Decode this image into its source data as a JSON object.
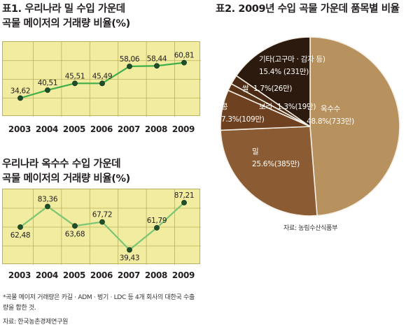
{
  "chart_data": [
    {
      "type": "line",
      "title_line1": "표1. 우리나라 밀 수입 가운데",
      "title_line2": "곡물 메이저의 거래량 비율(%)",
      "categories": [
        "2003",
        "2004",
        "2005",
        "2006",
        "2007",
        "2008",
        "2009"
      ],
      "values": [
        34.62,
        40.51,
        45.51,
        45.49,
        58.06,
        58.44,
        60.81
      ],
      "value_labels": [
        "34,62",
        "40,51",
        "45,51",
        "45,49",
        "58,06",
        "58,44",
        "60,81"
      ],
      "ylim": [
        25,
        72
      ],
      "grid": true,
      "colors": {
        "background": "#f1eca0",
        "line": "#3fae49",
        "marker": "#1e4f2b",
        "grid": "#b9b15e"
      }
    },
    {
      "type": "line",
      "title_line1": "우리나라 옥수수 수입 가운데",
      "title_line2": "곡물 메이저의 거래량 비율(%)",
      "categories": [
        "2003",
        "2004",
        "2005",
        "2006",
        "2007",
        "2008",
        "2009"
      ],
      "values": [
        62.48,
        83.36,
        63.68,
        67.72,
        39.43,
        61.79,
        87.21
      ],
      "value_labels": [
        "62,48",
        "83,36",
        "63,68",
        "67,72",
        "39,43",
        "61,79",
        "87,21"
      ],
      "ylim": [
        30,
        95
      ],
      "grid": true,
      "colors": {
        "background": "#f1eca0",
        "line": "#7cc576",
        "marker": "#1e4f2b",
        "grid": "#b9b15e"
      }
    },
    {
      "type": "pie",
      "title": "표2. 2009년 수입 곡물 가운데 품목별 비율",
      "slices": [
        {
          "name": "옥수수",
          "value": 48.8,
          "label": "48.8%(733만)",
          "color": "#b8925e"
        },
        {
          "name": "밀",
          "value": 25.6,
          "label": "25.6%(385만)",
          "color": "#8b5c34"
        },
        {
          "name": "콩",
          "value": 7.3,
          "label": "7.3%(109만)",
          "color": "#6e4220"
        },
        {
          "name": "보리",
          "value": 1.3,
          "label": "1.3%(19만)",
          "color": "#5a3419"
        },
        {
          "name": "쌀",
          "value": 1.7,
          "label": "1.7%(26만)",
          "color": "#4a2a14"
        },
        {
          "name": "기타(고구마 · 감자 등)",
          "value": 15.4,
          "label": "15.4% (231만)",
          "color": "#2b1a0d"
        }
      ],
      "source": "자료: 농림수산식품부"
    }
  ],
  "footnote_line1": "*곡물 메이저 거래량은 카길 · ADM · 벙기 · LDC 등 4개 회사의 대한국 수출",
  "footnote_line2": "량을 합한 것.",
  "source_left": "자료: 한국농촌경제연구원"
}
